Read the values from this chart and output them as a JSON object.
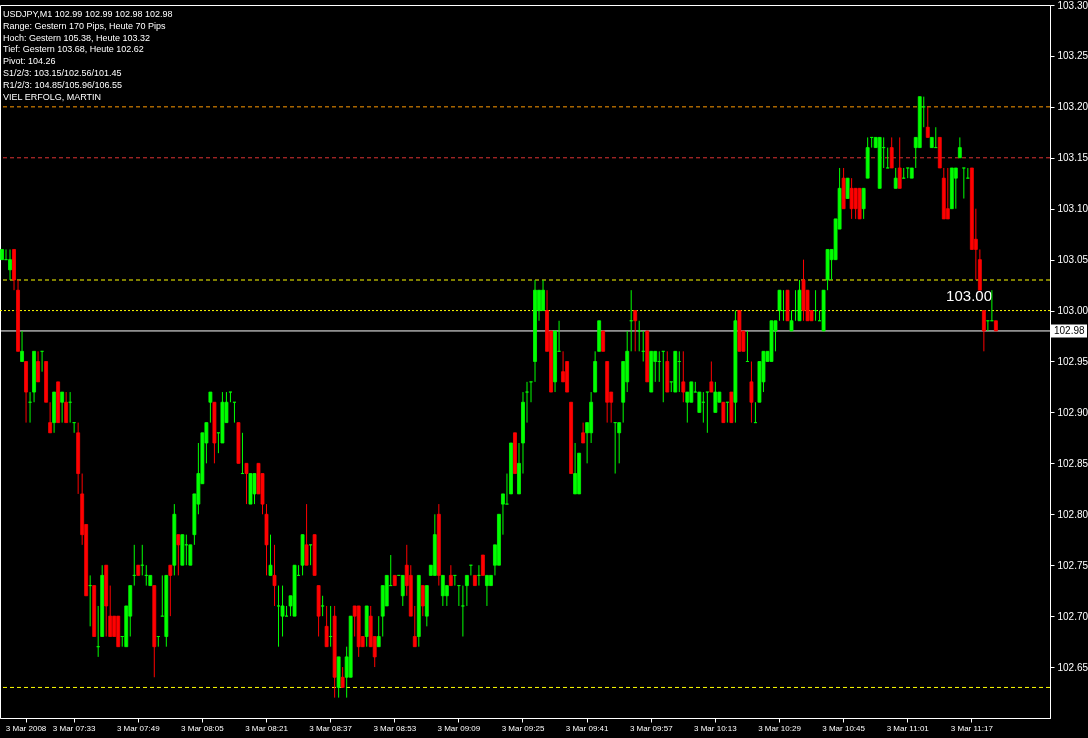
{
  "chart_data": {
    "type": "candlestick",
    "title": "USDJPY,M1  102.99 102.99 102.98 102.98",
    "annotations": [
      "Range: Gestern 170 Pips, Heute 70 Pips",
      "Hoch: Gestern 105.38, Heute 103.32",
      "Tief: Gestern 103.68, Heute 102.62",
      "Pivot: 104.26",
      "S1/2/3: 103.15/102.56/101.45",
      "R1/2/3: 104.85/105.96/106.55",
      "VIEL ERFOLG, MARTIN"
    ],
    "ohlc": [
      [
        103.05,
        103.06,
        103.05,
        103.06
      ],
      [
        103.05,
        103.06,
        103.05,
        103.05
      ],
      [
        103.04,
        103.06,
        103.03,
        103.05
      ],
      [
        103.06,
        103.06,
        103.02,
        103.03
      ],
      [
        103.02,
        103.03,
        102.96,
        102.96
      ],
      [
        102.95,
        102.98,
        102.95,
        102.96
      ],
      [
        102.95,
        102.95,
        102.89,
        102.92
      ],
      [
        102.91,
        102.92,
        102.89,
        102.91
      ],
      [
        102.92,
        102.96,
        102.91,
        102.96
      ],
      [
        102.95,
        102.96,
        102.93,
        102.93
      ],
      [
        102.96,
        102.96,
        102.94,
        102.96
      ],
      [
        102.95,
        102.95,
        102.91,
        102.91
      ],
      [
        102.89,
        102.91,
        102.88,
        102.88
      ],
      [
        102.89,
        102.92,
        102.88,
        102.92
      ],
      [
        102.93,
        102.93,
        102.89,
        102.89
      ],
      [
        102.91,
        102.92,
        102.89,
        102.92
      ],
      [
        102.91,
        102.92,
        102.89,
        102.89
      ],
      [
        102.91,
        102.92,
        102.89,
        102.91
      ],
      [
        102.89,
        102.89,
        102.88,
        102.89
      ],
      [
        102.88,
        102.89,
        102.82,
        102.84
      ],
      [
        102.82,
        102.84,
        102.77,
        102.78
      ],
      [
        102.79,
        102.79,
        102.72,
        102.72
      ],
      [
        102.73,
        102.74,
        102.69,
        102.73
      ],
      [
        102.73,
        102.73,
        102.68,
        102.68
      ],
      [
        102.67,
        102.71,
        102.66,
        102.67
      ],
      [
        102.68,
        102.75,
        102.68,
        102.74
      ],
      [
        102.75,
        102.75,
        102.68,
        102.71
      ],
      [
        102.7,
        102.73,
        102.68,
        102.68
      ],
      [
        102.7,
        102.7,
        102.68,
        102.68
      ],
      [
        102.7,
        102.7,
        102.67,
        102.67
      ],
      [
        102.68,
        102.68,
        102.67,
        102.68
      ],
      [
        102.67,
        102.71,
        102.67,
        102.71
      ],
      [
        102.7,
        102.73,
        102.68,
        102.73
      ],
      [
        102.74,
        102.77,
        102.73,
        102.74
      ],
      [
        102.75,
        102.75,
        102.74,
        102.74
      ],
      [
        102.75,
        102.77,
        102.74,
        102.75
      ],
      [
        102.74,
        102.75,
        102.73,
        102.74
      ],
      [
        102.73,
        102.74,
        102.73,
        102.74
      ],
      [
        102.73,
        102.73,
        102.64,
        102.67
      ],
      [
        102.68,
        102.68,
        102.67,
        102.68
      ],
      [
        102.7,
        102.74,
        102.7,
        102.7
      ],
      [
        102.68,
        102.74,
        102.67,
        102.74
      ],
      [
        102.75,
        102.75,
        102.7,
        102.74
      ],
      [
        102.75,
        102.81,
        102.74,
        102.8
      ],
      [
        102.78,
        102.78,
        102.74,
        102.77
      ],
      [
        102.75,
        102.78,
        102.75,
        102.78
      ],
      [
        102.77,
        102.78,
        102.75,
        102.77
      ],
      [
        102.75,
        102.77,
        102.75,
        102.77
      ],
      [
        102.78,
        102.82,
        102.77,
        102.82
      ],
      [
        102.81,
        102.87,
        102.8,
        102.84
      ],
      [
        102.83,
        102.88,
        102.83,
        102.88
      ],
      [
        102.87,
        102.89,
        102.85,
        102.89
      ],
      [
        102.91,
        102.92,
        102.89,
        102.92
      ],
      [
        102.91,
        102.91,
        102.85,
        102.87
      ],
      [
        102.88,
        102.88,
        102.86,
        102.88
      ],
      [
        102.87,
        102.92,
        102.87,
        102.91
      ],
      [
        102.89,
        102.92,
        102.89,
        102.91
      ],
      [
        102.92,
        102.92,
        102.91,
        102.92
      ],
      [
        102.91,
        102.91,
        102.89,
        102.91
      ],
      [
        102.89,
        102.89,
        102.85,
        102.85
      ],
      [
        102.84,
        102.88,
        102.84,
        102.84
      ],
      [
        102.85,
        102.85,
        102.81,
        102.84
      ],
      [
        102.81,
        102.84,
        102.81,
        102.84
      ],
      [
        102.82,
        102.84,
        102.81,
        102.84
      ],
      [
        102.85,
        102.85,
        102.82,
        102.82
      ],
      [
        102.84,
        102.84,
        102.8,
        102.81
      ],
      [
        102.8,
        102.81,
        102.74,
        102.77
      ],
      [
        102.74,
        102.78,
        102.74,
        102.75
      ],
      [
        102.74,
        102.77,
        102.71,
        102.73
      ],
      [
        102.71,
        102.73,
        102.67,
        102.71
      ],
      [
        102.7,
        102.73,
        102.68,
        102.71
      ],
      [
        102.7,
        102.71,
        102.7,
        102.7
      ],
      [
        102.71,
        102.72,
        102.7,
        102.72
      ],
      [
        102.7,
        102.75,
        102.7,
        102.75
      ],
      [
        102.74,
        102.75,
        102.74,
        102.74
      ],
      [
        102.75,
        102.78,
        102.74,
        102.78
      ],
      [
        102.77,
        102.81,
        102.75,
        102.75
      ],
      [
        102.77,
        102.77,
        102.75,
        102.77
      ],
      [
        102.78,
        102.78,
        102.74,
        102.74
      ],
      [
        102.73,
        102.73,
        102.68,
        102.7
      ],
      [
        102.71,
        102.72,
        102.7,
        102.71
      ],
      [
        102.69,
        102.71,
        102.67,
        102.67
      ],
      [
        102.68,
        102.71,
        102.67,
        102.68
      ],
      [
        102.7,
        102.71,
        102.62,
        102.64
      ],
      [
        102.63,
        102.66,
        102.62,
        102.66
      ],
      [
        102.64,
        102.65,
        102.63,
        102.63
      ],
      [
        102.64,
        102.67,
        102.62,
        102.66
      ],
      [
        102.64,
        102.7,
        102.64,
        102.7
      ],
      [
        102.71,
        102.71,
        102.68,
        102.7
      ],
      [
        102.71,
        102.71,
        102.66,
        102.67
      ],
      [
        102.68,
        102.68,
        102.67,
        102.67
      ],
      [
        102.68,
        102.71,
        102.67,
        102.71
      ],
      [
        102.7,
        102.71,
        102.67,
        102.67
      ],
      [
        102.68,
        102.68,
        102.65,
        102.66
      ],
      [
        102.67,
        102.7,
        102.67,
        102.68
      ],
      [
        102.7,
        102.73,
        102.68,
        102.73
      ],
      [
        102.71,
        102.74,
        102.71,
        102.74
      ],
      [
        102.73,
        102.76,
        102.73,
        102.73
      ],
      [
        102.74,
        102.74,
        102.73,
        102.73
      ],
      [
        102.74,
        102.74,
        102.74,
        102.74
      ],
      [
        102.72,
        102.74,
        102.71,
        102.74
      ],
      [
        102.75,
        102.77,
        102.72,
        102.73
      ],
      [
        102.74,
        102.75,
        102.7,
        102.7
      ],
      [
        102.68,
        102.71,
        102.67,
        102.67
      ],
      [
        102.68,
        102.74,
        102.67,
        102.74
      ],
      [
        102.73,
        102.73,
        102.7,
        102.71
      ],
      [
        102.7,
        102.73,
        102.69,
        102.73
      ],
      [
        102.74,
        102.75,
        102.74,
        102.75
      ],
      [
        102.74,
        102.8,
        102.74,
        102.78
      ],
      [
        102.8,
        102.81,
        102.73,
        102.74
      ],
      [
        102.72,
        102.74,
        102.71,
        102.74
      ],
      [
        102.72,
        102.73,
        102.71,
        102.73
      ],
      [
        102.74,
        102.75,
        102.73,
        102.73
      ],
      [
        102.74,
        102.74,
        102.73,
        102.74
      ],
      [
        102.73,
        102.73,
        102.71,
        102.73
      ],
      [
        102.71,
        102.73,
        102.68,
        102.71
      ],
      [
        102.73,
        102.74,
        102.71,
        102.74
      ],
      [
        102.75,
        102.75,
        102.74,
        102.75
      ],
      [
        102.74,
        102.74,
        102.73,
        102.73
      ],
      [
        102.74,
        102.75,
        102.73,
        102.74
      ],
      [
        102.76,
        102.76,
        102.74,
        102.74
      ],
      [
        102.73,
        102.74,
        102.71,
        102.74
      ],
      [
        102.73,
        102.74,
        102.73,
        102.74
      ],
      [
        102.75,
        102.77,
        102.74,
        102.77
      ],
      [
        102.75,
        102.8,
        102.75,
        102.8
      ],
      [
        102.81,
        102.82,
        102.78,
        102.82
      ],
      [
        102.81,
        102.84,
        102.81,
        102.81
      ],
      [
        102.82,
        102.87,
        102.82,
        102.87
      ],
      [
        102.88,
        102.88,
        102.84,
        102.84
      ],
      [
        102.82,
        102.87,
        102.82,
        102.85
      ],
      [
        102.87,
        102.92,
        102.84,
        102.91
      ],
      [
        102.92,
        102.93,
        102.89,
        102.92
      ],
      [
        102.93,
        102.93,
        102.91,
        102.93
      ],
      [
        102.95,
        103.03,
        102.93,
        103.02
      ],
      [
        103.0,
        103.02,
        102.99,
        103.02
      ],
      [
        103.0,
        103.03,
        103.0,
        103.02
      ],
      [
        103.0,
        103.02,
        102.96,
        102.96
      ],
      [
        102.98,
        102.98,
        102.92,
        102.92
      ],
      [
        102.93,
        102.98,
        102.92,
        102.98
      ],
      [
        102.96,
        102.99,
        102.96,
        102.96
      ],
      [
        102.94,
        102.96,
        102.93,
        102.93
      ],
      [
        102.95,
        102.95,
        102.92,
        102.92
      ],
      [
        102.91,
        102.91,
        102.84,
        102.84
      ],
      [
        102.82,
        102.87,
        102.82,
        102.84
      ],
      [
        102.82,
        102.86,
        102.82,
        102.86
      ],
      [
        102.88,
        102.89,
        102.87,
        102.87
      ],
      [
        102.88,
        102.89,
        102.85,
        102.89
      ],
      [
        102.88,
        102.92,
        102.87,
        102.91
      ],
      [
        102.92,
        102.96,
        102.92,
        102.95
      ],
      [
        102.96,
        102.99,
        102.96,
        102.99
      ],
      [
        102.98,
        102.98,
        102.96,
        102.96
      ],
      [
        102.95,
        102.95,
        102.89,
        102.91
      ],
      [
        102.92,
        102.92,
        102.89,
        102.91
      ],
      [
        102.89,
        102.89,
        102.84,
        102.89
      ],
      [
        102.88,
        102.89,
        102.85,
        102.89
      ],
      [
        102.91,
        102.95,
        102.89,
        102.95
      ],
      [
        102.93,
        102.98,
        102.92,
        102.96
      ],
      [
        102.99,
        103.02,
        102.96,
        102.99
      ],
      [
        103.0,
        103.0,
        102.96,
        102.99
      ],
      [
        102.98,
        102.99,
        102.96,
        102.98
      ],
      [
        102.96,
        102.98,
        102.95,
        102.96
      ],
      [
        102.98,
        102.98,
        102.93,
        102.93
      ],
      [
        102.92,
        102.96,
        102.92,
        102.96
      ],
      [
        102.95,
        102.96,
        102.93,
        102.96
      ],
      [
        102.95,
        102.96,
        102.93,
        102.95
      ],
      [
        102.96,
        102.96,
        102.91,
        102.96
      ],
      [
        102.95,
        102.96,
        102.92,
        102.92
      ],
      [
        102.93,
        102.93,
        102.92,
        102.93
      ],
      [
        102.92,
        102.96,
        102.92,
        102.96
      ],
      [
        102.95,
        102.96,
        102.92,
        102.95
      ],
      [
        102.93,
        102.96,
        102.91,
        102.92
      ],
      [
        102.91,
        102.92,
        102.89,
        102.92
      ],
      [
        102.91,
        102.93,
        102.91,
        102.93
      ],
      [
        102.92,
        102.93,
        102.92,
        102.92
      ],
      [
        102.9,
        102.92,
        102.9,
        102.92
      ],
      [
        102.91,
        102.92,
        102.89,
        102.91
      ],
      [
        102.92,
        102.92,
        102.88,
        102.92
      ],
      [
        102.93,
        102.95,
        102.92,
        102.92
      ],
      [
        102.9,
        102.93,
        102.9,
        102.92
      ],
      [
        102.91,
        102.92,
        102.91,
        102.92
      ],
      [
        102.91,
        102.91,
        102.89,
        102.89
      ],
      [
        102.91,
        102.91,
        102.89,
        102.91
      ],
      [
        102.92,
        102.92,
        102.89,
        102.89
      ],
      [
        102.91,
        103.0,
        102.89,
        102.99
      ],
      [
        103.0,
        103.0,
        102.96,
        102.96
      ],
      [
        102.98,
        102.98,
        102.96,
        102.96
      ],
      [
        102.95,
        102.98,
        102.95,
        102.95
      ],
      [
        102.93,
        102.95,
        102.89,
        102.91
      ],
      [
        102.89,
        102.91,
        102.89,
        102.89
      ],
      [
        102.91,
        102.95,
        102.91,
        102.95
      ],
      [
        102.93,
        102.96,
        102.92,
        102.96
      ],
      [
        102.95,
        102.96,
        102.95,
        102.96
      ],
      [
        102.95,
        102.99,
        102.95,
        102.99
      ],
      [
        102.98,
        102.99,
        102.96,
        102.99
      ],
      [
        103.0,
        103.02,
        102.99,
        103.02
      ],
      [
        103.0,
        103.02,
        102.99,
        103.0
      ],
      [
        103.02,
        103.02,
        102.99,
        102.99
      ],
      [
        102.98,
        103.0,
        102.98,
        102.99
      ],
      [
        103.0,
        103.02,
        102.99,
        103.0
      ],
      [
        102.99,
        103.03,
        102.99,
        103.02
      ],
      [
        103.03,
        103.05,
        102.99,
        103.0
      ],
      [
        103.02,
        103.02,
        102.99,
        102.99
      ],
      [
        103.0,
        103.0,
        102.99,
        102.99
      ],
      [
        103.0,
        103.02,
        102.99,
        103.0
      ],
      [
        102.99,
        103.0,
        102.99,
        102.99
      ],
      [
        102.98,
        103.02,
        102.98,
        103.02
      ],
      [
        103.03,
        103.06,
        103.02,
        103.06
      ],
      [
        103.05,
        103.06,
        103.03,
        103.06
      ],
      [
        103.05,
        103.09,
        103.05,
        103.09
      ],
      [
        103.08,
        103.14,
        103.08,
        103.12
      ],
      [
        103.13,
        103.14,
        103.1,
        103.1
      ],
      [
        103.11,
        103.13,
        103.11,
        103.13
      ],
      [
        103.12,
        103.13,
        103.09,
        103.1
      ],
      [
        103.12,
        103.12,
        103.09,
        103.1
      ],
      [
        103.12,
        103.12,
        103.09,
        103.09
      ],
      [
        103.1,
        103.12,
        103.09,
        103.12
      ],
      [
        103.13,
        103.17,
        103.13,
        103.16
      ],
      [
        103.17,
        103.17,
        103.16,
        103.17
      ],
      [
        103.16,
        103.17,
        103.16,
        103.17
      ],
      [
        103.12,
        103.17,
        103.12,
        103.17
      ],
      [
        103.16,
        103.17,
        103.14,
        103.16
      ],
      [
        103.14,
        103.16,
        103.14,
        103.14
      ],
      [
        103.16,
        103.17,
        103.14,
        103.14
      ],
      [
        103.12,
        103.14,
        103.12,
        103.13
      ],
      [
        103.14,
        103.17,
        103.12,
        103.12
      ],
      [
        103.13,
        103.14,
        103.13,
        103.13
      ],
      [
        103.14,
        103.14,
        103.13,
        103.14
      ],
      [
        103.13,
        103.14,
        103.13,
        103.14
      ],
      [
        103.16,
        103.17,
        103.14,
        103.17
      ],
      [
        103.16,
        103.21,
        103.16,
        103.21
      ],
      [
        103.2,
        103.21,
        103.18,
        103.2
      ],
      [
        103.18,
        103.2,
        103.17,
        103.17
      ],
      [
        103.16,
        103.17,
        103.16,
        103.17
      ],
      [
        103.16,
        103.18,
        103.16,
        103.16
      ],
      [
        103.17,
        103.17,
        103.14,
        103.14
      ],
      [
        103.13,
        103.14,
        103.09,
        103.09
      ],
      [
        103.1,
        103.14,
        103.09,
        103.09
      ],
      [
        103.1,
        103.14,
        103.1,
        103.14
      ],
      [
        103.13,
        103.14,
        103.1,
        103.14
      ],
      [
        103.15,
        103.17,
        103.15,
        103.16
      ],
      [
        103.14,
        103.14,
        103.11,
        103.14
      ],
      [
        103.13,
        103.14,
        103.13,
        103.13
      ],
      [
        103.14,
        103.14,
        103.06,
        103.06
      ],
      [
        103.07,
        103.1,
        103.03,
        103.06
      ],
      [
        103.05,
        103.06,
        103.02,
        103.02
      ],
      [
        103.0,
        103.0,
        102.96,
        102.98
      ],
      [
        102.99,
        102.99,
        102.98,
        102.99
      ],
      [
        102.99,
        103.02,
        102.99,
        102.99
      ],
      [
        102.99,
        102.99,
        102.98,
        102.98
      ],
      null,
      null,
      null,
      null,
      null,
      null,
      null,
      null,
      null,
      null,
      null,
      null,
      null
    ],
    "colors": [
      "#00ff00",
      "#00ff00",
      "#00ff00",
      "#ff0000",
      "#ff0000",
      "#00ff00",
      "#ff0000",
      "#00ff00",
      "#00ff00",
      "#ff0000",
      "#00ff00",
      "#ff0000",
      "#ff0000",
      "#00ff00",
      "#ff0000",
      "#00ff00",
      "#ff0000",
      "#00ff00",
      "#00ff00",
      "#ff0000",
      "#ff0000",
      "#ff0000",
      "#00ff00",
      "#ff0000",
      "#00ff00",
      "#00ff00",
      "#ff0000",
      "#ff0000",
      "#ff0000",
      "#ff0000",
      "#00ff00",
      "#00ff00",
      "#00ff00",
      "#00ff00",
      "#ff0000",
      "#00ff00",
      "#00ff00",
      "#00ff00",
      "#ff0000",
      "#00ff00",
      "#00ff00",
      "#00ff00",
      "#ff0000",
      "#00ff00",
      "#ff0000",
      "#00ff00",
      "#00ff00",
      "#00ff00",
      "#00ff00",
      "#00ff00",
      "#00ff00",
      "#00ff00",
      "#00ff00",
      "#ff0000",
      "#00ff00",
      "#00ff00",
      "#00ff00",
      "#00ff00",
      "#00ff00",
      "#ff0000",
      "#00ff00",
      "#ff0000",
      "#00ff00",
      "#00ff00",
      "#ff0000",
      "#ff0000",
      "#ff0000",
      "#00ff00",
      "#ff0000",
      "#00ff00",
      "#00ff00",
      "#00ff00",
      "#00ff00",
      "#00ff00",
      "#00ff00",
      "#00ff00",
      "#ff0000",
      "#00ff00",
      "#ff0000",
      "#ff0000",
      "#00ff00",
      "#ff0000",
      "#00ff00",
      "#ff0000",
      "#00ff00",
      "#ff0000",
      "#00ff00",
      "#00ff00",
      "#ff0000",
      "#ff0000",
      "#ff0000",
      "#00ff00",
      "#ff0000",
      "#ff0000",
      "#00ff00",
      "#00ff00",
      "#00ff00",
      "#00ff00",
      "#ff0000",
      "#00ff00",
      "#00ff00",
      "#ff0000",
      "#ff0000",
      "#ff0000",
      "#00ff00",
      "#ff0000",
      "#00ff00",
      "#00ff00",
      "#00ff00",
      "#ff0000",
      "#00ff00",
      "#00ff00",
      "#ff0000",
      "#00ff00",
      "#00ff00",
      "#00ff00",
      "#00ff00",
      "#00ff00",
      "#ff0000",
      "#00ff00",
      "#ff0000",
      "#00ff00",
      "#00ff00",
      "#00ff00",
      "#00ff00",
      "#00ff00",
      "#00ff00",
      "#00ff00",
      "#ff0000",
      "#00ff00",
      "#00ff00",
      "#00ff00",
      "#00ff00",
      "#00ff00",
      "#00ff00",
      "#00ff00",
      "#ff0000",
      "#ff0000",
      "#00ff00",
      "#00ff00",
      "#ff0000",
      "#ff0000",
      "#ff0000",
      "#00ff00",
      "#00ff00",
      "#ff0000",
      "#00ff00",
      "#00ff00",
      "#00ff00",
      "#00ff00",
      "#ff0000",
      "#ff0000",
      "#ff0000",
      "#00ff00",
      "#00ff00",
      "#00ff00",
      "#00ff00",
      "#00ff00",
      "#ff0000",
      "#00ff00",
      "#00ff00",
      "#ff0000",
      "#00ff00",
      "#00ff00",
      "#00ff00",
      "#00ff00",
      "#ff0000",
      "#00ff00",
      "#00ff00",
      "#00ff00",
      "#ff0000",
      "#00ff00",
      "#00ff00",
      "#00ff00",
      "#00ff00",
      "#00ff00",
      "#00ff00",
      "#ff0000",
      "#00ff00",
      "#00ff00",
      "#ff0000",
      "#00ff00",
      "#ff0000",
      "#00ff00",
      "#ff0000",
      "#ff0000",
      "#00ff00",
      "#ff0000",
      "#00ff00",
      "#00ff00",
      "#00ff00",
      "#00ff00",
      "#00ff00",
      "#00ff00",
      "#00ff00",
      "#00ff00",
      "#ff0000",
      "#00ff00",
      "#00ff00",
      "#00ff00",
      "#ff0000",
      "#ff0000",
      "#ff0000",
      "#00ff00",
      "#00ff00",
      "#00ff00",
      "#00ff00",
      "#00ff00",
      "#00ff00",
      "#00ff00",
      "#ff0000",
      "#00ff00",
      "#ff0000",
      "#ff0000",
      "#ff0000",
      "#00ff00",
      "#00ff00",
      "#00ff00",
      "#00ff00",
      "#00ff00",
      "#00ff00",
      "#00ff00",
      "#ff0000",
      "#00ff00",
      "#ff0000",
      "#00ff00",
      "#00ff00",
      "#00ff00",
      "#00ff00",
      "#00ff00",
      "#00ff00",
      "#ff0000",
      "#00ff00",
      "#00ff00",
      "#ff0000",
      "#ff0000",
      "#ff0000",
      "#00ff00",
      "#00ff00",
      "#00ff00",
      "#00ff00",
      "#00ff00",
      "#ff0000",
      "#ff0000",
      "#ff0000",
      "#ff0000",
      "#00ff00",
      "#00ff00",
      "#ff0000",
      null,
      null,
      null,
      null,
      null,
      null,
      null,
      null,
      null,
      null,
      null,
      null,
      null
    ],
    "categories": [
      null,
      null,
      null,
      null,
      null,
      null,
      "3 Mar 2008",
      null,
      null,
      null,
      null,
      null,
      null,
      null,
      null,
      null,
      null,
      null,
      "3 Mar 07:33",
      null,
      null,
      null,
      null,
      null,
      null,
      null,
      null,
      null,
      null,
      null,
      null,
      null,
      null,
      null,
      "3 Mar 07:49",
      null,
      null,
      null,
      null,
      null,
      null,
      null,
      null,
      null,
      null,
      null,
      null,
      null,
      null,
      null,
      "3 Mar 08:05",
      null,
      null,
      null,
      null,
      null,
      null,
      null,
      null,
      null,
      null,
      null,
      null,
      null,
      null,
      null,
      "3 Mar 08:21",
      null,
      null,
      null,
      null,
      null,
      null,
      null,
      null,
      null,
      null,
      null,
      null,
      null,
      null,
      null,
      "3 Mar 08:37",
      null,
      null,
      null,
      null,
      null,
      null,
      null,
      null,
      null,
      null,
      null,
      null,
      null,
      null,
      null,
      "3 Mar 08:53",
      null,
      null,
      null,
      null,
      null,
      null,
      null,
      null,
      null,
      null,
      null,
      null,
      null,
      null,
      null,
      "3 Mar 09:09",
      null,
      null,
      null,
      null,
      null,
      null,
      null,
      null,
      null,
      null,
      null,
      null,
      null,
      null,
      null,
      "3 Mar 09:25",
      null,
      null,
      null,
      null,
      null,
      null,
      null,
      null,
      null,
      null,
      null,
      null,
      null,
      null,
      null,
      "3 Mar 09:41",
      null,
      null,
      null,
      null,
      null,
      null,
      null,
      null,
      null,
      null,
      null,
      null,
      null,
      null,
      null,
      "3 Mar 09:57",
      null,
      null,
      null,
      null,
      null,
      null,
      null,
      null,
      null,
      null,
      null,
      null,
      null,
      null,
      null,
      "3 Mar 10:13",
      null,
      null,
      null,
      null,
      null,
      null,
      null,
      null,
      null,
      null,
      null,
      null,
      null,
      null,
      null,
      "3 Mar 10:29",
      null,
      null,
      null,
      null,
      null,
      null,
      null,
      null,
      null,
      null,
      null,
      null,
      null,
      null,
      null,
      "3 Mar 10:45",
      null,
      null,
      null,
      null,
      null,
      null,
      null,
      null,
      null,
      null,
      null,
      null,
      null,
      null,
      null,
      "3 Mar 11:01",
      null,
      null,
      null,
      null,
      null,
      null,
      null,
      null,
      null,
      null,
      null,
      null,
      null,
      null,
      null,
      "3 Mar 11:17",
      null,
      null,
      null,
      null,
      null,
      null,
      null,
      null,
      null,
      null,
      null,
      null,
      null,
      null,
      null,
      null,
      null,
      null,
      null
    ],
    "ylim": [
      102.6,
      103.3
    ],
    "yticks": [
      {
        "value": 102.65,
        "label": "102.65"
      },
      {
        "value": 102.7,
        "label": "102.70"
      },
      {
        "value": 102.75,
        "label": "102.75"
      },
      {
        "value": 102.8,
        "label": "102.80"
      },
      {
        "value": 102.85,
        "label": "102.85"
      },
      {
        "value": 102.9,
        "label": "102.90"
      },
      {
        "value": 102.95,
        "label": "102.95"
      },
      {
        "value": 103.0,
        "label": "103.00"
      },
      {
        "value": 103.05,
        "label": "103.05"
      },
      {
        "value": 103.1,
        "label": "103.10"
      },
      {
        "value": 103.15,
        "label": "103.15"
      },
      {
        "value": 103.2,
        "label": "103.20"
      },
      {
        "value": 103.25,
        "label": "103.25"
      },
      {
        "value": 103.3,
        "label": "103.30"
      }
    ],
    "ref_lines": [
      {
        "axis": "y",
        "value": 103.2,
        "color": "#ff9900",
        "line_style": "dashed"
      },
      {
        "axis": "y",
        "value": 103.15,
        "color": "#dd3333",
        "line_style": "dashed"
      },
      {
        "axis": "y",
        "value": 103.03,
        "color": "#ffff00",
        "line_style": "dashed"
      },
      {
        "axis": "y",
        "value": 102.63,
        "color": "#ffff00",
        "line_style": "dashed"
      },
      {
        "axis": "y",
        "value": 103.0,
        "label": "103.00",
        "color": "#ffff00",
        "line_style": "dotted"
      },
      {
        "axis": "y",
        "value": 102.98,
        "label": "102.98",
        "color": "#ffffff",
        "line_style": "solid"
      }
    ]
  }
}
